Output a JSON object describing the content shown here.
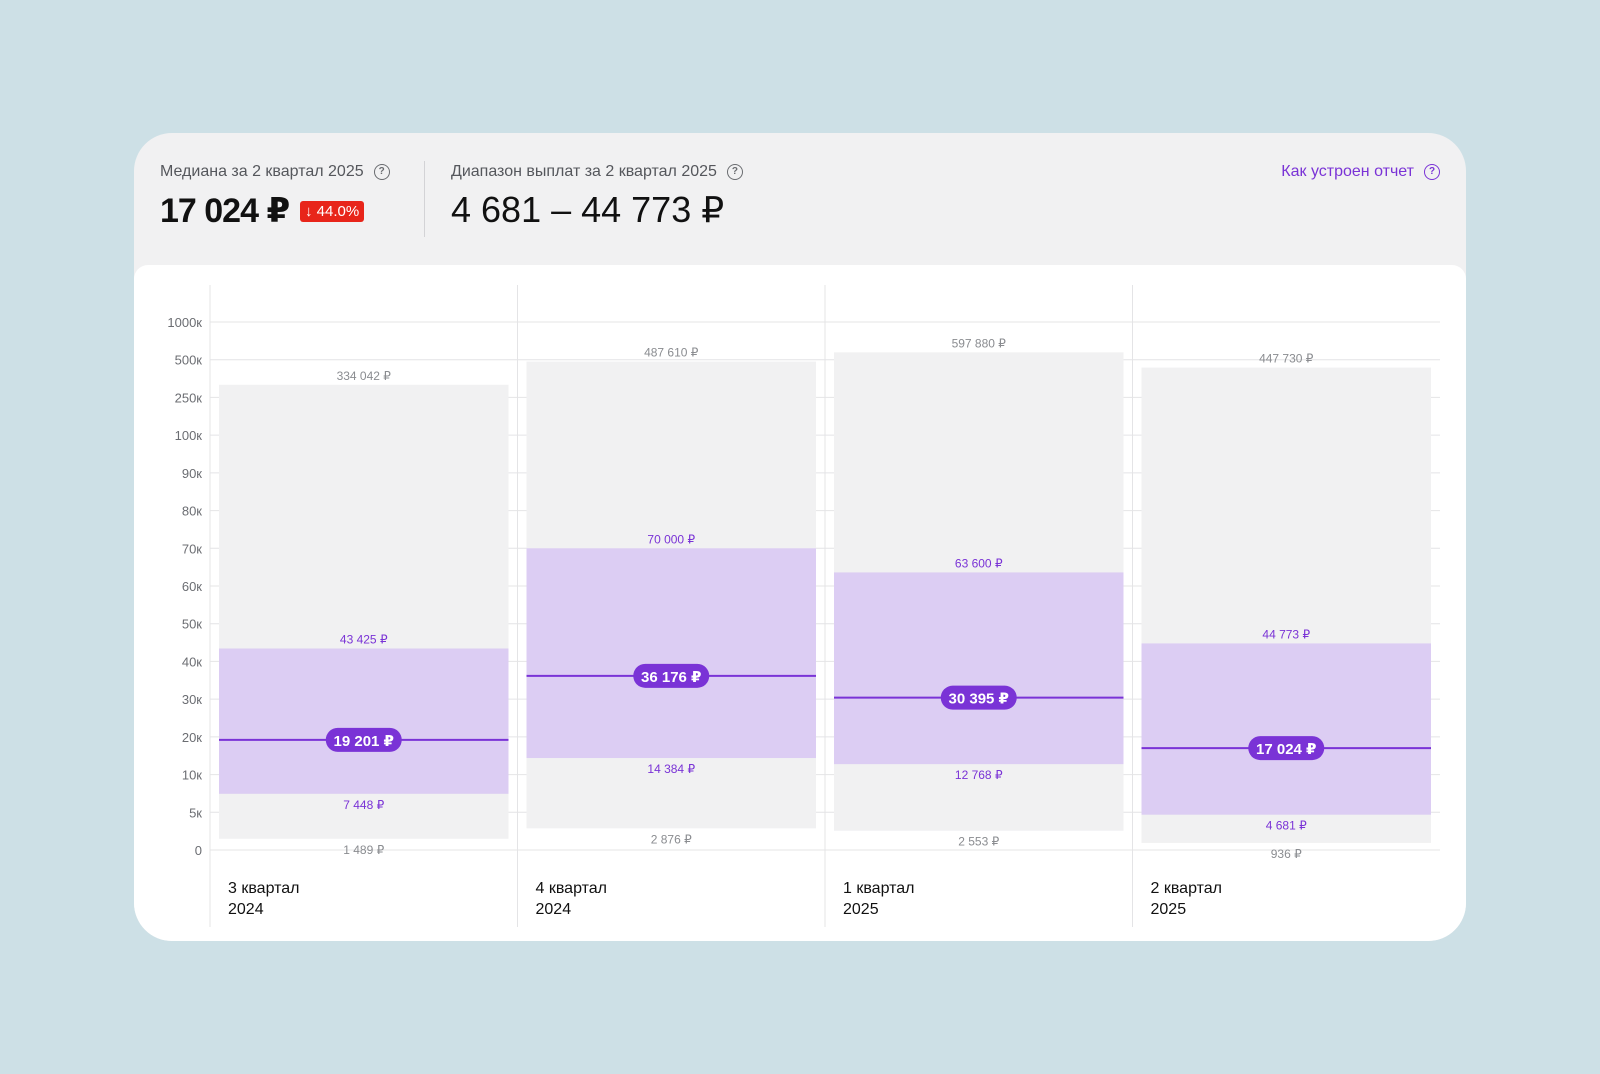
{
  "header": {
    "median_label": "Медиана за 2 квартал 2025",
    "median_value": "17 024 ₽",
    "median_change": "↓ 44.0%",
    "range_label": "Диапазон выплат за 2 квартал 2025",
    "range_value": "4 681 – 44 773 ₽",
    "report_link": "Как устроен отчет",
    "help_icon": "?"
  },
  "colors": {
    "accent": "#7a33d6",
    "band": "#dccdf3",
    "range_bg": "#f1f1f2",
    "badge_red": "#e8251a"
  },
  "chart_data": {
    "type": "bar",
    "subtype": "range-band",
    "y_ticks": [
      "0",
      "5к",
      "10к",
      "20к",
      "30к",
      "40к",
      "50к",
      "60к",
      "70к",
      "80к",
      "90к",
      "100к",
      "250к",
      "500к",
      "1000к"
    ],
    "y_tick_values": [
      0,
      5000,
      10000,
      20000,
      30000,
      40000,
      50000,
      60000,
      70000,
      80000,
      90000,
      100000,
      250000,
      500000,
      1000000
    ],
    "grid": true,
    "categories": [
      {
        "line1": "3 квартал",
        "line2": "2024"
      },
      {
        "line1": "4 квартал",
        "line2": "2024"
      },
      {
        "line1": "1 квартал",
        "line2": "2025"
      },
      {
        "line1": "2 квартал",
        "line2": "2025"
      }
    ],
    "series": [
      {
        "min": 1489,
        "q1": 7448,
        "median": 19201,
        "q3": 43425,
        "max": 334042,
        "min_label": "1 489 ₽",
        "q1_label": "7 448 ₽",
        "median_label": "19 201 ₽",
        "q3_label": "43 425 ₽",
        "max_label": "334 042 ₽"
      },
      {
        "min": 2876,
        "q1": 14384,
        "median": 36176,
        "q3": 70000,
        "max": 487610,
        "min_label": "2 876 ₽",
        "q1_label": "14 384 ₽",
        "median_label": "36 176 ₽",
        "q3_label": "70 000 ₽",
        "max_label": "487 610 ₽"
      },
      {
        "min": 2553,
        "q1": 12768,
        "median": 30395,
        "q3": 63600,
        "max": 597880,
        "min_label": "2 553 ₽",
        "q1_label": "12 768 ₽",
        "median_label": "30 395 ₽",
        "q3_label": "63 600 ₽",
        "max_label": "597 880 ₽"
      },
      {
        "min": 936,
        "q1": 4681,
        "median": 17024,
        "q3": 44773,
        "max": 447730,
        "min_label": "936 ₽",
        "q1_label": "4 681 ₽",
        "median_label": "17 024 ₽",
        "q3_label": "44 773 ₽",
        "max_label": "447 730 ₽"
      }
    ]
  }
}
